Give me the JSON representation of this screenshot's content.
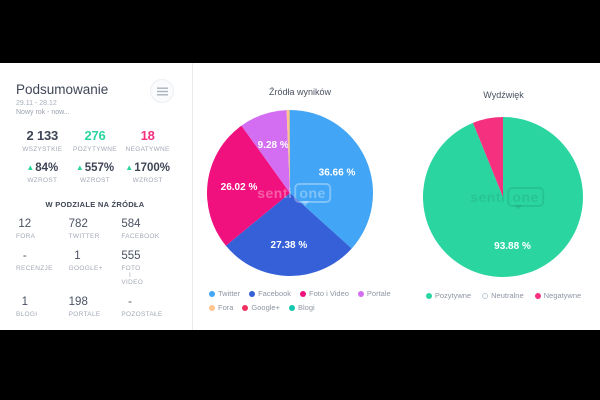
{
  "summary_panel": {
    "title": "Podsumowanie",
    "date_range": "29.11 - 28.12",
    "subtitle": "Nowy rok - now...",
    "filter_icon": "sliders-icon",
    "totals": [
      {
        "value": "2 133",
        "label": "WSZYSTKIE",
        "color": "#3e4555"
      },
      {
        "value": "276",
        "label": "POZYTYWNE",
        "color": "#2bd5a0"
      },
      {
        "value": "18",
        "label": "NEGATYWNE",
        "color": "#f5317f"
      }
    ],
    "growth": [
      {
        "value": "84%",
        "label": "WZROST",
        "arrow": "▲"
      },
      {
        "value": "557%",
        "label": "WZROST",
        "arrow": "▲"
      },
      {
        "value": "1700%",
        "label": "WZROST",
        "arrow": "▲"
      }
    ],
    "sources_heading": "W PODZIALE NA ŹRÓDŁA",
    "sources": [
      {
        "value": "12",
        "label": "FORA"
      },
      {
        "value": "782",
        "label": "TWITTER"
      },
      {
        "value": "584",
        "label": "FACEBOOK"
      },
      {
        "value": "-",
        "label": "RECENZJE"
      },
      {
        "value": "1",
        "label": "GOOGLE+"
      },
      {
        "value": "555",
        "label": "FOTO I VIDEO"
      },
      {
        "value": "1",
        "label": "BLOGI"
      },
      {
        "value": "198",
        "label": "PORTALE"
      },
      {
        "value": "-",
        "label": "POZOSTAŁE"
      }
    ]
  },
  "chart_data": [
    {
      "type": "pie",
      "title": "Źródła wyników",
      "legend_position": "bottom",
      "legend_wrap": 4,
      "watermark": {
        "prefix": "senti",
        "bubble": "one"
      },
      "series": [
        {
          "name": "Twitter",
          "value": 36.66,
          "display": "36.66 %",
          "color": "#42a5f5"
        },
        {
          "name": "Facebook",
          "value": 27.38,
          "display": "27.38 %",
          "color": "#3560d8"
        },
        {
          "name": "Foto i Video",
          "value": 26.02,
          "display": "26.02 %",
          "color": "#f0117e"
        },
        {
          "name": "Portale",
          "value": 9.28,
          "display": "9.28 %",
          "color": "#d36ef2"
        },
        {
          "name": "Fora",
          "value": 0.56,
          "display": "",
          "color": "#ffc38f"
        },
        {
          "name": "Google+",
          "value": 0.05,
          "display": "",
          "color": "#ef3061"
        },
        {
          "name": "Blogi",
          "value": 0.05,
          "display": "",
          "color": "#16c9ad"
        }
      ]
    },
    {
      "type": "pie",
      "title": "Wydźwięk",
      "legend_position": "bottom",
      "watermark": {
        "prefix": "senti",
        "bubble": "one"
      },
      "series": [
        {
          "name": "Pozytywne",
          "value": 93.88,
          "display": "93.88 %",
          "color": "#2bd5a0"
        },
        {
          "name": "Neutralne",
          "value": 0,
          "display": "",
          "color": "#bfc5d2",
          "hollow": true
        },
        {
          "name": "Negatywne",
          "value": 6.12,
          "display": "",
          "color": "#f5317f"
        }
      ]
    }
  ]
}
